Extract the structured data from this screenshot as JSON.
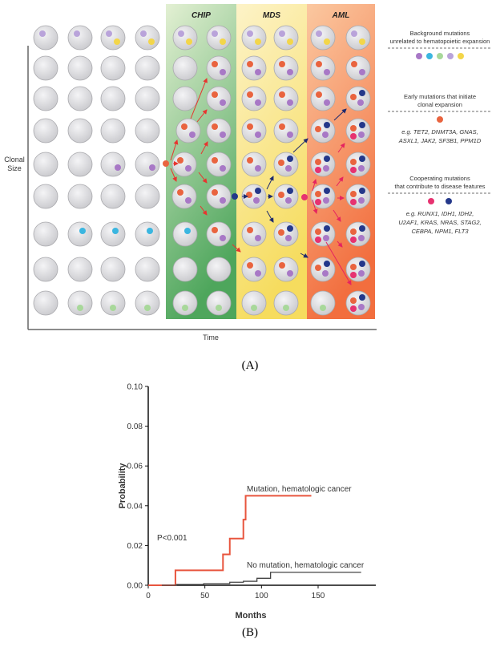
{
  "panel_a": {
    "label": "(A)",
    "y_axis_label": [
      "Clonal",
      "Size"
    ],
    "x_axis_label": "Time",
    "stages": [
      {
        "name": "CHIP",
        "color_top": "#e3f0d3",
        "color_bottom": "#4ea65c"
      },
      {
        "name": "MDS",
        "color_top": "#fdf3c8",
        "color_bottom": "#f6dc5e"
      },
      {
        "name": "AML",
        "color_top": "#fbc8a0",
        "color_bottom": "#f26e3e"
      }
    ],
    "mutation_colors": {
      "p": "#a878c6",
      "l": "#b9a3da",
      "y": "#f3d64a",
      "c": "#3bb6e0",
      "g": "#a8d89a",
      "o": "#e9643f",
      "r": "#e73270",
      "b": "#24388a"
    },
    "cells": [
      [
        "l",
        "l",
        "ly",
        "ly",
        "ly",
        "ly",
        "ly",
        "ly",
        "ly",
        "ly"
      ],
      [
        "",
        "",
        "",
        "",
        "",
        "op",
        "op",
        "op",
        "op",
        "op"
      ],
      [
        "",
        "",
        "",
        "",
        "",
        "op",
        "op",
        "op",
        "op",
        "obp"
      ],
      [
        "",
        "",
        "",
        "",
        "op",
        "op",
        "op",
        "op",
        "obp",
        "obrp"
      ],
      [
        "",
        "",
        "p",
        "p",
        "op",
        "op",
        "op",
        "obp",
        "obrp",
        "obrp"
      ],
      [
        "",
        "",
        "",
        "",
        "op",
        "op",
        "obp",
        "obp",
        "obrp",
        "obrp"
      ],
      [
        "",
        "c",
        "c",
        "c",
        "c",
        "op",
        "op",
        "obp",
        "obrp",
        "obrp"
      ],
      [
        "",
        "",
        "",
        "",
        "",
        "",
        "op",
        "op",
        "obp",
        "obrp"
      ],
      [
        "",
        "g",
        "g",
        "g",
        "g",
        "g",
        "g",
        "g",
        "g",
        "obrp"
      ]
    ],
    "legend": [
      {
        "title": [
          "Background mutations",
          "unrelated to hematopoietic expansion"
        ],
        "dots": [
          "p",
          "c",
          "g",
          "l",
          "y"
        ],
        "examples": []
      },
      {
        "title": [
          "Early mutations that initiate",
          "clonal expansion"
        ],
        "dots": [
          "o"
        ],
        "examples": [
          "e.g. TET2, DNMT3A, GNAS,",
          "ASXL1, JAK2, SF3B1, PPM1D"
        ]
      },
      {
        "title": [
          "Cooperating mutations",
          "that contribute to disease features"
        ],
        "dots": [
          "r",
          "b"
        ],
        "examples": [
          "e.g. RUNX1, IDH1, IDH2,",
          "U2AF1, KRAS, NRAS, STAG2,",
          "CEBPA, NPM1, FLT3"
        ]
      }
    ]
  },
  "panel_b": {
    "label": "(B)",
    "p_value": "P<0.001",
    "chart_data": {
      "type": "line",
      "xlabel": "Months",
      "ylabel": "Probability",
      "xlim": [
        0,
        190
      ],
      "ylim": [
        0,
        0.1
      ],
      "xticks": [
        0,
        50,
        100,
        150
      ],
      "yticks": [
        "0.00",
        "0.02",
        "0.04",
        "0.06",
        "0.08",
        "0.10"
      ],
      "step": true,
      "series": [
        {
          "name": "Mutation, hematologic cancer",
          "color": "#e8553e",
          "x": [
            0,
            24,
            66,
            72,
            84,
            86,
            144
          ],
          "y": [
            0,
            0.0075,
            0.0155,
            0.0235,
            0.033,
            0.045,
            0.045
          ]
        },
        {
          "name": "No mutation, hematologic cancer",
          "color": "#444444",
          "x": [
            12,
            25,
            49,
            72,
            84,
            96,
            108,
            188
          ],
          "y": [
            0,
            0.0004,
            0.0008,
            0.0015,
            0.002,
            0.0035,
            0.0065,
            0.0065
          ]
        }
      ]
    }
  }
}
